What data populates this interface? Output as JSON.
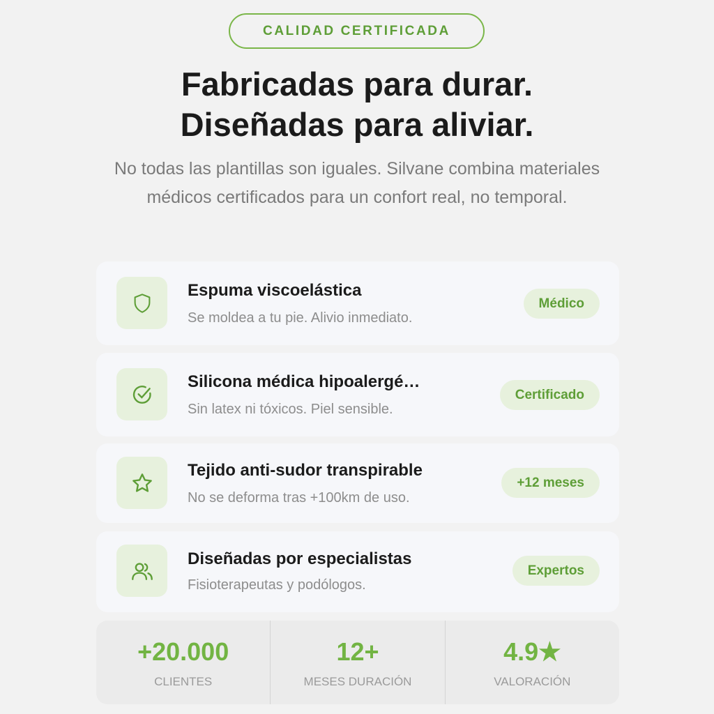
{
  "badge": "CALIDAD CERTIFICADA",
  "title": {
    "line1": "Fabricadas para durar.",
    "line2": "Diseñadas para aliviar."
  },
  "subtitle": "No todas las plantillas son iguales. Silvane combina materiales médicos certificados para un confort real, no temporal.",
  "accent": "#72b443",
  "features": [
    {
      "icon": "shield-icon",
      "title": "Espuma viscoelástica",
      "desc": "Se moldea a tu pie. Alivio inmediato.",
      "tag": "Médico"
    },
    {
      "icon": "check-circle-icon",
      "title": "Silicona médica hipoalergé…",
      "desc": "Sin latex ni tóxicos. Piel sensible.",
      "tag": "Certificado"
    },
    {
      "icon": "star-icon",
      "title": "Tejido anti-sudor transpirable",
      "desc": "No se deforma tras +100km de uso.",
      "tag": "+12 meses"
    },
    {
      "icon": "users-icon",
      "title": "Diseñadas por especialistas",
      "desc": "Fisioterapeutas y podólogos.",
      "tag": "Expertos"
    }
  ],
  "stats": [
    {
      "value": "+20.000",
      "label": "CLIENTES"
    },
    {
      "value": "12+",
      "label": "MESES DURACIÓN"
    },
    {
      "value": "4.9★",
      "label": "VALORACIÓN"
    }
  ]
}
